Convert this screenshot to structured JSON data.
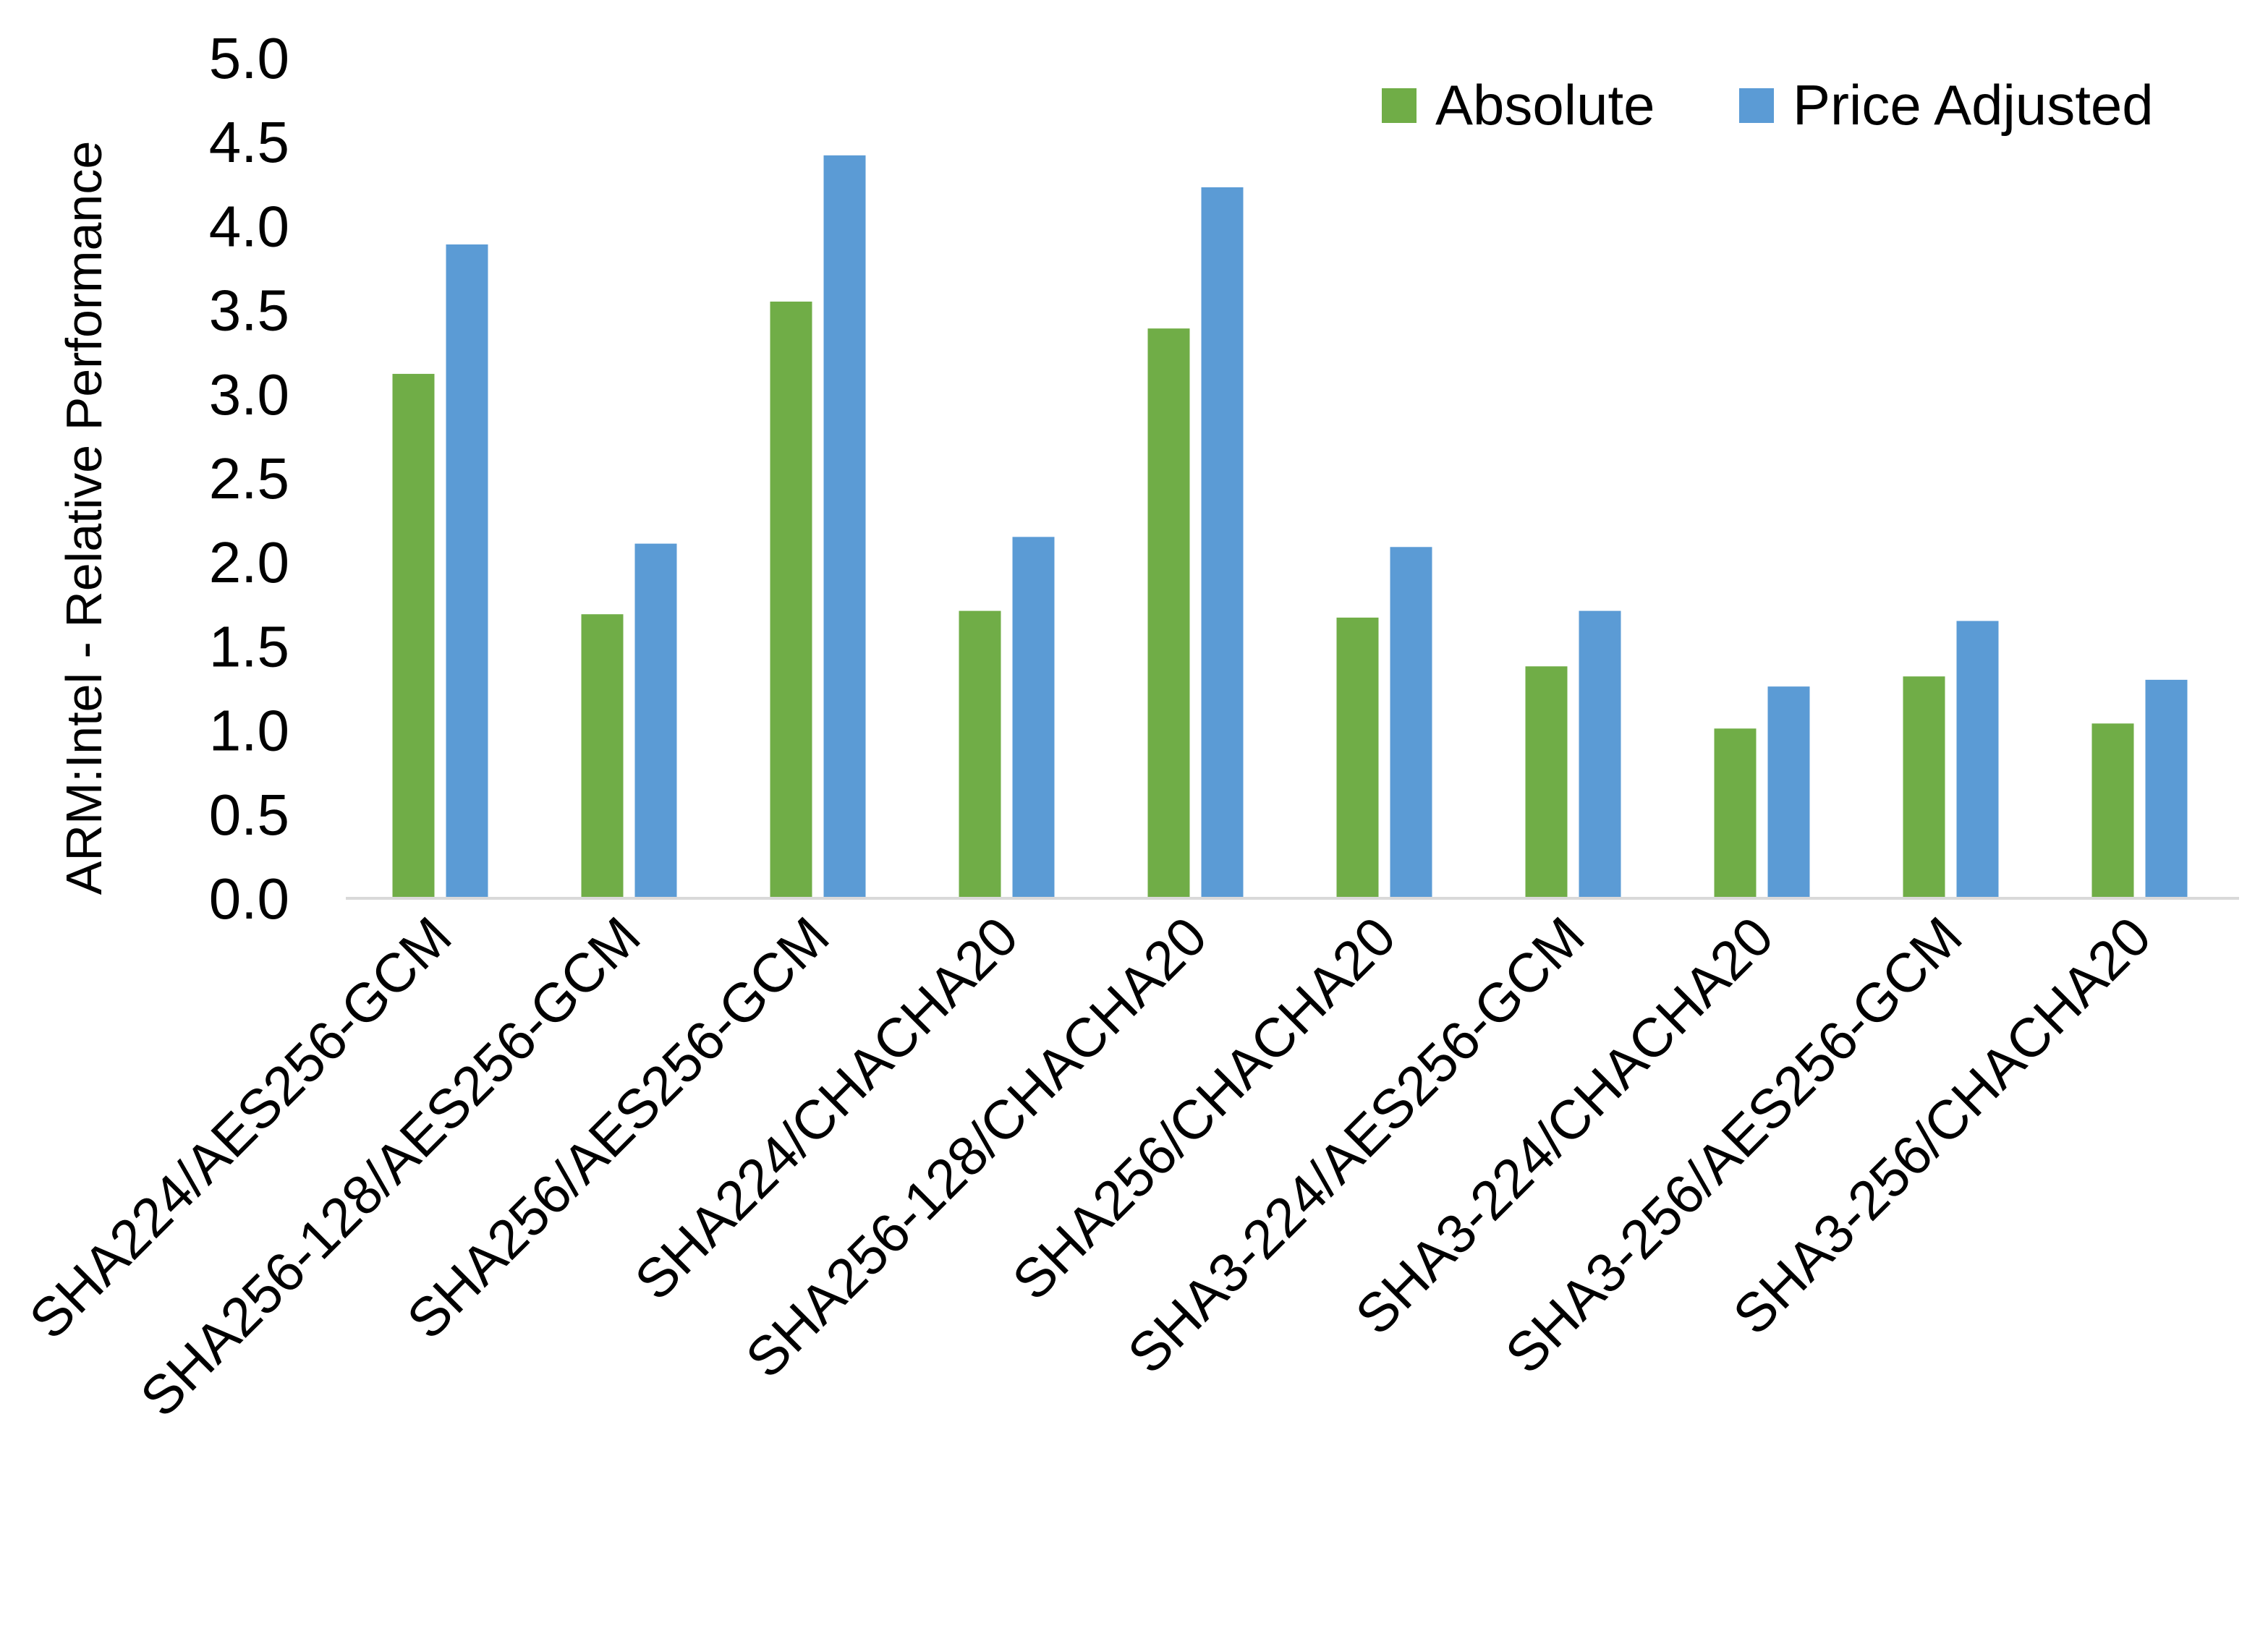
{
  "chart_data": {
    "type": "bar",
    "title": "",
    "xlabel": "",
    "ylabel": "ARM:Intel - Relative Performance",
    "ylim": [
      0,
      5.0
    ],
    "yticks": [
      "0.0",
      "0.5",
      "1.0",
      "1.5",
      "2.0",
      "2.5",
      "3.0",
      "3.5",
      "4.0",
      "4.5",
      "5.0"
    ],
    "grid": false,
    "legend_position": "top-right",
    "categories": [
      "SHA224/AES256-GCM",
      "SHA256-128/AES256-GCM",
      "SHA256/AES256-GCM",
      "SHA224/CHACHA20",
      "SHA256-128/CHACHA20",
      "SHA256/CHACHA20",
      "SHA3-224/AES256-GCM",
      "SHA3-224/CHACHA20",
      "SHA3-256/AES256-GCM",
      "SHA3-256/CHACHA20"
    ],
    "series": [
      {
        "name": "Absolute",
        "color": "#70AD47",
        "values": [
          3.12,
          1.69,
          3.55,
          1.71,
          3.39,
          1.67,
          1.38,
          1.01,
          1.32,
          1.04
        ]
      },
      {
        "name": "Price Adjusted",
        "color": "#5B9BD5",
        "values": [
          3.89,
          2.11,
          4.42,
          2.15,
          4.23,
          2.09,
          1.71,
          1.26,
          1.65,
          1.3
        ]
      }
    ]
  }
}
